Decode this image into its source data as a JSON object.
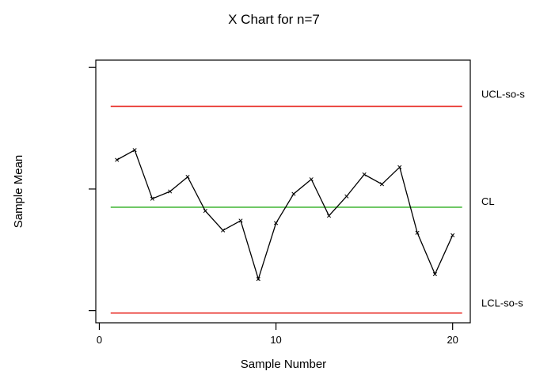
{
  "chart_data": {
    "type": "line",
    "title": "X Chart for n=7",
    "xlabel": "Sample Number",
    "ylabel": "Sample Mean",
    "xlim": [
      -0.2,
      21.0
    ],
    "ylim": [
      -0.5,
      10.3
    ],
    "x_ticks": [
      0,
      10,
      20
    ],
    "x_tick_labels": [
      "0",
      "10",
      "20"
    ],
    "y_ticks": [
      0,
      5,
      10
    ],
    "x": [
      1,
      2,
      3,
      4,
      5,
      6,
      7,
      8,
      9,
      10,
      11,
      12,
      13,
      14,
      15,
      16,
      17,
      18,
      19,
      20
    ],
    "series": [
      {
        "values": [
          6.2,
          6.6,
          4.6,
          4.9,
          5.5,
          4.1,
          3.3,
          3.7,
          1.3,
          3.6,
          4.8,
          5.4,
          3.9,
          4.7,
          5.6,
          5.2,
          5.9,
          3.2,
          1.5,
          3.1
        ],
        "color": "#000000"
      }
    ],
    "control_limits": [
      {
        "label": "UCL-so-s",
        "value": 8.4,
        "color": "#e8312b"
      },
      {
        "label": "CL",
        "value": 4.25,
        "color": "#48b83c"
      },
      {
        "label": "LCL-so-s",
        "value": -0.1,
        "color": "#e8312b"
      }
    ],
    "grid": false,
    "legend": "none"
  }
}
